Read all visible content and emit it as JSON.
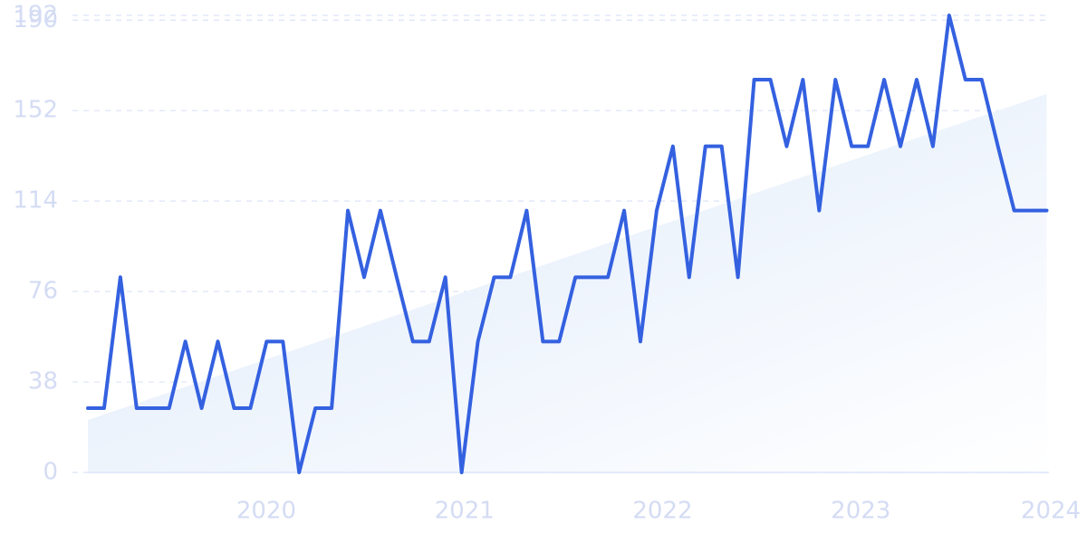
{
  "chart_data": {
    "type": "line",
    "x": [
      2019.1,
      2019.182,
      2019.264,
      2019.346,
      2019.428,
      2019.51,
      2019.592,
      2019.674,
      2019.756,
      2019.838,
      2019.92,
      2020.002,
      2020.084,
      2020.166,
      2020.248,
      2020.33,
      2020.412,
      2020.494,
      2020.576,
      2020.658,
      2020.74,
      2020.822,
      2020.904,
      2020.986,
      2021.068,
      2021.15,
      2021.232,
      2021.314,
      2021.396,
      2021.478,
      2021.56,
      2021.642,
      2021.724,
      2021.806,
      2021.888,
      2021.97,
      2022.052,
      2022.134,
      2022.216,
      2022.298,
      2022.38,
      2022.462,
      2022.544,
      2022.626,
      2022.708,
      2022.79,
      2022.872,
      2022.954,
      2023.036,
      2023.118,
      2023.2,
      2023.282,
      2023.364,
      2023.446,
      2023.528,
      2023.61,
      2023.692,
      2023.774,
      2023.856,
      2023.938
    ],
    "series": [
      {
        "color": "#3461e0",
        "values": [
          27,
          27,
          82,
          27,
          27,
          27,
          55,
          27,
          55,
          27,
          27,
          55,
          55,
          0,
          27,
          27,
          110,
          82,
          110,
          82,
          55,
          55,
          82,
          0,
          55,
          82,
          82,
          110,
          55,
          55,
          82,
          82,
          82,
          110,
          55,
          110,
          137,
          82,
          137,
          137,
          82,
          165,
          165,
          137,
          165,
          110,
          165,
          137,
          137,
          165,
          137,
          165,
          137,
          192,
          165,
          165,
          137,
          110,
          110,
          110
        ]
      }
    ],
    "trend": {
      "x": [
        2019.1,
        2023.938
      ],
      "values": [
        22,
        159
      ],
      "color": "#e3edfb"
    },
    "xlim": [
      2019.1,
      2024.05
    ],
    "xticks": [
      2020,
      2021,
      2022,
      2023,
      2024
    ],
    "ylim": [
      0,
      192
    ],
    "yticks": [
      0,
      38,
      76,
      114,
      152,
      190,
      192
    ],
    "grid": true
  }
}
